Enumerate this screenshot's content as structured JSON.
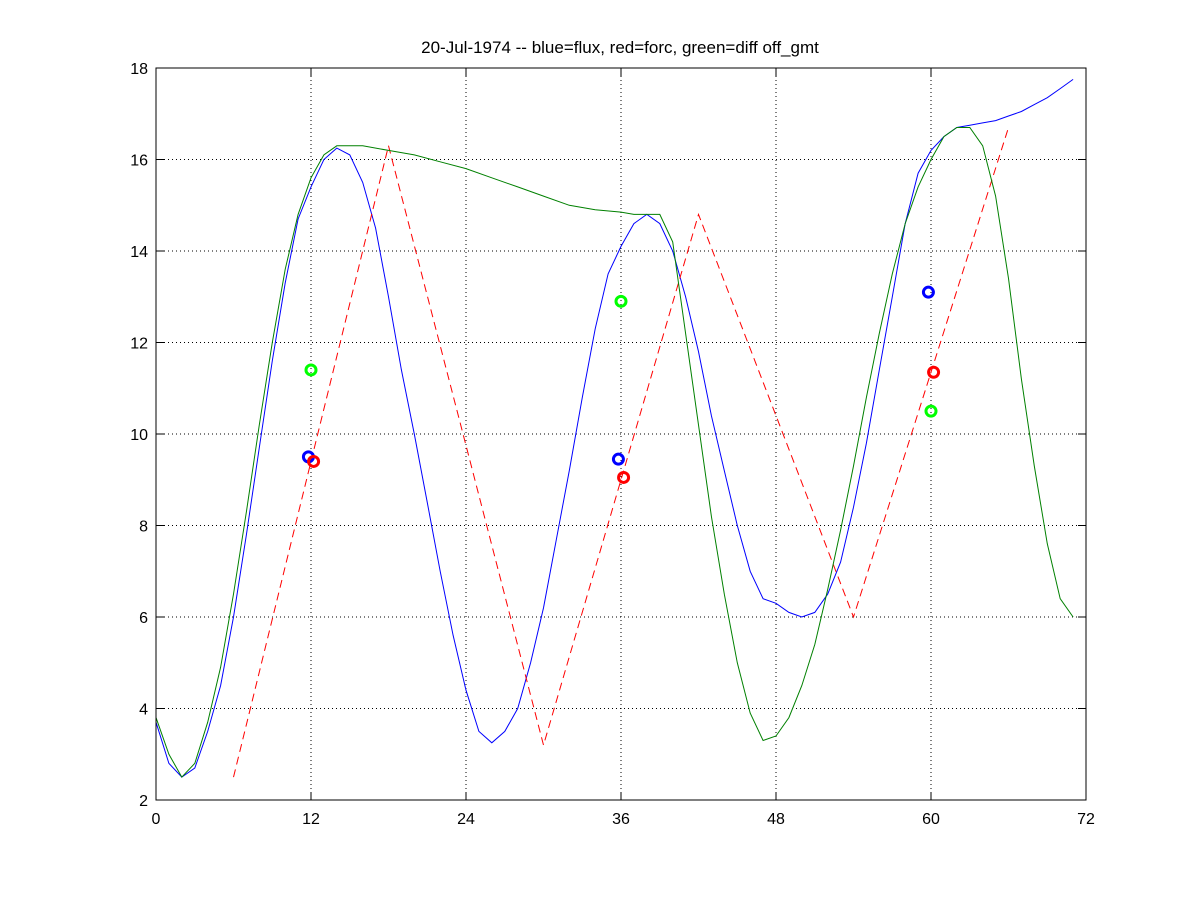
{
  "chart_data": {
    "type": "line",
    "title": "20-Jul-1974 -- blue=flux, red=forc, green=diff off_gmt",
    "xlabel": "",
    "ylabel": "",
    "xlim": [
      0,
      72
    ],
    "ylim": [
      2,
      18
    ],
    "xticks": [
      0,
      12,
      24,
      36,
      48,
      60,
      72
    ],
    "yticks": [
      2,
      4,
      6,
      8,
      10,
      12,
      14,
      16,
      18
    ],
    "grid": true,
    "series": [
      {
        "color": "#0000ff",
        "style": "solid",
        "points": [
          [
            0,
            3.7
          ],
          [
            1,
            2.8
          ],
          [
            2,
            2.5
          ],
          [
            3,
            2.7
          ],
          [
            4,
            3.5
          ],
          [
            5,
            4.5
          ],
          [
            6,
            6
          ],
          [
            7,
            7.8
          ],
          [
            8,
            9.7
          ],
          [
            9,
            11.6
          ],
          [
            10,
            13.3
          ],
          [
            11,
            14.7
          ],
          [
            12,
            15.4
          ],
          [
            13,
            16
          ],
          [
            14,
            16.25
          ],
          [
            15,
            16.1
          ],
          [
            16,
            15.5
          ],
          [
            17,
            14.5
          ],
          [
            18,
            13
          ],
          [
            19,
            11.4
          ],
          [
            20,
            10
          ],
          [
            21,
            8.5
          ],
          [
            22,
            7
          ],
          [
            23,
            5.6
          ],
          [
            24,
            4.4
          ],
          [
            25,
            3.5
          ],
          [
            26,
            3.25
          ],
          [
            27,
            3.5
          ],
          [
            28,
            4
          ],
          [
            29,
            5
          ],
          [
            30,
            6.2
          ],
          [
            31,
            7.7
          ],
          [
            32,
            9.2
          ],
          [
            33,
            10.8
          ],
          [
            34,
            12.3
          ],
          [
            35,
            13.5
          ],
          [
            36,
            14.1
          ],
          [
            37,
            14.6
          ],
          [
            38,
            14.8
          ],
          [
            39,
            14.6
          ],
          [
            40,
            14
          ],
          [
            41,
            13
          ],
          [
            42,
            11.8
          ],
          [
            43,
            10.4
          ],
          [
            44,
            9.2
          ],
          [
            45,
            8
          ],
          [
            46,
            7
          ],
          [
            47,
            6.4
          ],
          [
            48,
            6.3
          ],
          [
            49,
            6.1
          ],
          [
            50,
            6
          ],
          [
            51,
            6.1
          ],
          [
            52,
            6.5
          ],
          [
            53,
            7.2
          ],
          [
            54,
            8.4
          ],
          [
            55,
            9.8
          ],
          [
            56,
            11.4
          ],
          [
            57,
            13
          ],
          [
            58,
            14.6
          ],
          [
            59,
            15.7
          ],
          [
            60,
            16.2
          ],
          [
            61,
            16.5
          ],
          [
            62,
            16.7
          ],
          [
            63,
            16.75
          ],
          [
            64,
            16.8
          ],
          [
            65,
            16.85
          ],
          [
            66,
            16.95
          ],
          [
            67,
            17.05
          ],
          [
            68,
            17.2
          ],
          [
            69,
            17.35
          ],
          [
            70,
            17.55
          ],
          [
            71,
            17.75
          ]
        ]
      },
      {
        "color": "#ff0000",
        "style": "dashed",
        "points": [
          [
            6,
            2.5
          ],
          [
            18,
            16.3
          ],
          [
            30,
            3.2
          ],
          [
            42,
            14.8
          ],
          [
            54,
            6
          ],
          [
            66,
            16.7
          ]
        ]
      },
      {
        "color": "#008000",
        "style": "solid",
        "points": [
          [
            0,
            3.8
          ],
          [
            1,
            3
          ],
          [
            2,
            2.5
          ],
          [
            3,
            2.8
          ],
          [
            4,
            3.7
          ],
          [
            5,
            4.9
          ],
          [
            6,
            6.5
          ],
          [
            7,
            8.3
          ],
          [
            8,
            10.2
          ],
          [
            9,
            12
          ],
          [
            10,
            13.6
          ],
          [
            11,
            14.8
          ],
          [
            12,
            15.6
          ],
          [
            13,
            16.1
          ],
          [
            14,
            16.3
          ],
          [
            16,
            16.3
          ],
          [
            18,
            16.2
          ],
          [
            20,
            16.1
          ],
          [
            22,
            15.95
          ],
          [
            24,
            15.8
          ],
          [
            26,
            15.6
          ],
          [
            28,
            15.4
          ],
          [
            30,
            15.2
          ],
          [
            32,
            15
          ],
          [
            34,
            14.9
          ],
          [
            36,
            14.85
          ],
          [
            37,
            14.8
          ],
          [
            38,
            14.8
          ],
          [
            39,
            14.8
          ],
          [
            40,
            14.2
          ],
          [
            41,
            12.2
          ],
          [
            42,
            10.2
          ],
          [
            43,
            8.2
          ],
          [
            44,
            6.5
          ],
          [
            45,
            5
          ],
          [
            46,
            3.9
          ],
          [
            47,
            3.3
          ],
          [
            48,
            3.4
          ],
          [
            49,
            3.8
          ],
          [
            50,
            4.5
          ],
          [
            51,
            5.4
          ],
          [
            52,
            6.6
          ],
          [
            53,
            7.9
          ],
          [
            54,
            9.3
          ],
          [
            55,
            10.8
          ],
          [
            56,
            12.2
          ],
          [
            57,
            13.5
          ],
          [
            58,
            14.6
          ],
          [
            59,
            15.4
          ],
          [
            60,
            16
          ],
          [
            61,
            16.5
          ],
          [
            62,
            16.7
          ],
          [
            63,
            16.7
          ],
          [
            64,
            16.3
          ],
          [
            65,
            15.2
          ],
          [
            66,
            13.4
          ],
          [
            67,
            11.2
          ],
          [
            68,
            9.3
          ],
          [
            69,
            7.6
          ],
          [
            70,
            6.4
          ],
          [
            71,
            6
          ]
        ]
      }
    ],
    "markers": [
      {
        "color": "#0000ff",
        "points": [
          [
            11.8,
            9.5
          ],
          [
            35.8,
            9.45
          ],
          [
            59.8,
            13.1
          ]
        ]
      },
      {
        "color": "#ff0000",
        "points": [
          [
            12.2,
            9.4
          ],
          [
            36.2,
            9.05
          ],
          [
            60.2,
            11.35
          ]
        ]
      },
      {
        "color": "#00ff00",
        "points": [
          [
            12,
            11.4
          ],
          [
            36,
            12.9
          ],
          [
            60,
            10.5
          ]
        ]
      }
    ]
  }
}
